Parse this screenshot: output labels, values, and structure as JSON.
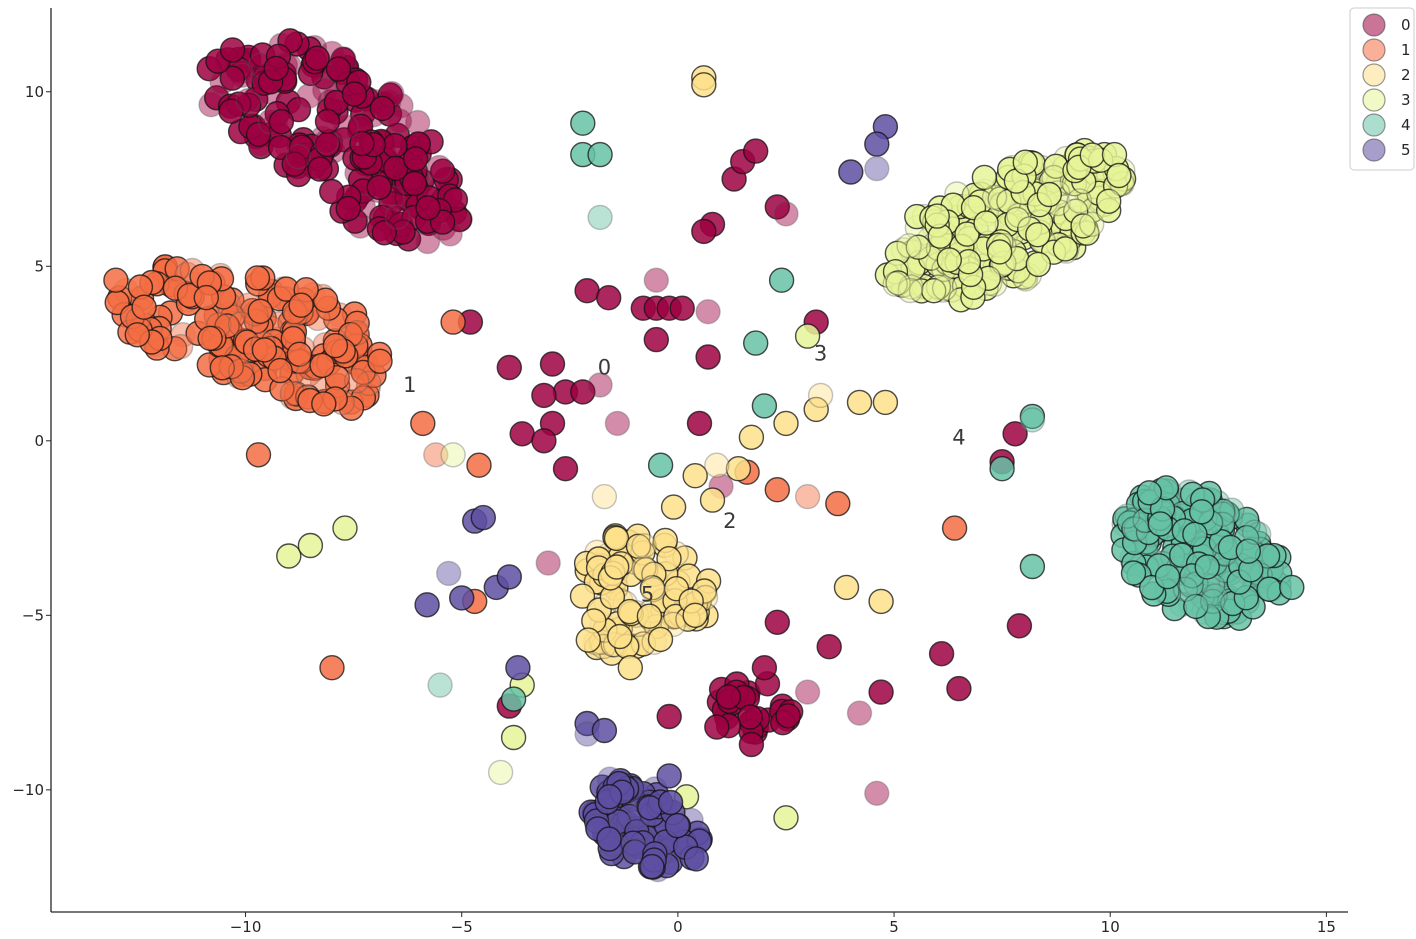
{
  "chart_data": {
    "type": "scatter",
    "xlim": [
      -14.5,
      15.5
    ],
    "ylim": [
      -13.5,
      12.4
    ],
    "x_ticks": [
      -10,
      -5,
      0,
      5,
      10,
      15
    ],
    "y_ticks": [
      -10,
      -5,
      0,
      5,
      10
    ],
    "x_tick_labels": [
      "−10",
      "−5",
      "0",
      "5",
      "10",
      "15"
    ],
    "y_tick_labels": [
      "−10",
      "−5",
      "0",
      "5",
      "10"
    ],
    "grid": false,
    "legend_position": "upper-right",
    "marker": "circle",
    "series": [
      {
        "name": "0",
        "color": "#9e0142",
        "clusters": [
          {
            "polygon": [
              [
                -11,
                10.6
              ],
              [
                -10.2,
                11.5
              ],
              [
                -9,
                11.6
              ],
              [
                -7.4,
                10.8
              ],
              [
                -6.2,
                9.5
              ],
              [
                -5.4,
                8
              ],
              [
                -5,
                6.8
              ],
              [
                -4.8,
                6
              ],
              [
                -5.8,
                5.6
              ],
              [
                -7.2,
                6
              ],
              [
                -8.4,
                7
              ],
              [
                -9.6,
                8.2
              ],
              [
                -10.8,
                9.6
              ]
            ],
            "count": 220
          }
        ],
        "points": [
          [
            -10.3,
            11.2
          ],
          [
            -2.1,
            4.3
          ],
          [
            -1.6,
            4.1
          ],
          [
            -0.5,
            4.6
          ],
          [
            -0.8,
            3.8
          ],
          [
            -0.5,
            3.8
          ],
          [
            -0.2,
            3.8
          ],
          [
            0.1,
            3.8
          ],
          [
            0.7,
            3.7
          ],
          [
            -3.9,
            2.1
          ],
          [
            -2.9,
            2.2
          ],
          [
            -2.6,
            1.4
          ],
          [
            -2.2,
            1.4
          ],
          [
            -1.8,
            1.6
          ],
          [
            -3.1,
            1.3
          ],
          [
            -2.9,
            0.5
          ],
          [
            -3.6,
            0.2
          ],
          [
            -3.1,
            0.0
          ],
          [
            -1.4,
            0.5
          ],
          [
            -0.5,
            2.9
          ],
          [
            0.7,
            2.4
          ],
          [
            0.5,
            0.5
          ],
          [
            -2.6,
            -0.8
          ],
          [
            -3.0,
            -3.5
          ],
          [
            1.3,
            7.5
          ],
          [
            1.5,
            8.0
          ],
          [
            1.8,
            8.3
          ],
          [
            2.3,
            6.7
          ],
          [
            2.5,
            6.5
          ],
          [
            0.8,
            6.2
          ],
          [
            0.6,
            6.0
          ],
          [
            3.2,
            3.4
          ],
          [
            -4.8,
            3.4
          ],
          [
            1.0,
            -1.3
          ],
          [
            7.5,
            -0.6
          ],
          [
            7.8,
            0.2
          ],
          [
            2.3,
            -5.2
          ],
          [
            3.5,
            -5.9
          ],
          [
            4.2,
            -7.8
          ],
          [
            4.7,
            -7.2
          ],
          [
            6.1,
            -6.1
          ],
          [
            6.5,
            -7.1
          ],
          [
            7.9,
            -5.3
          ],
          [
            3.0,
            -7.2
          ],
          [
            1.7,
            -8.7
          ],
          [
            -0.2,
            -7.9
          ],
          [
            0.9,
            -8.2
          ],
          [
            2.0,
            -6.5
          ],
          [
            4.6,
            -10.1
          ],
          [
            -3.9,
            -7.6
          ]
        ],
        "clusters_small": [
          {
            "polygon": [
              [
                1.0,
                -7.0
              ],
              [
                1.8,
                -6.8
              ],
              [
                2.7,
                -7.3
              ],
              [
                2.6,
                -8.2
              ],
              [
                1.6,
                -8.4
              ],
              [
                0.8,
                -8.2
              ]
            ],
            "count": 28
          }
        ]
      },
      {
        "name": "1",
        "color": "#f46d43",
        "clusters": [
          {
            "polygon": [
              [
                -13.2,
                3.8
              ],
              [
                -12.3,
                5.1
              ],
              [
                -10.5,
                5.0
              ],
              [
                -8.2,
                4.3
              ],
              [
                -7.0,
                3.2
              ],
              [
                -6.8,
                1.8
              ],
              [
                -7.4,
                0.9
              ],
              [
                -8.8,
                1.1
              ],
              [
                -10.8,
                2.0
              ],
              [
                -12.5,
                2.8
              ]
            ],
            "count": 200
          }
        ],
        "points": [
          [
            -13.0,
            4.6
          ],
          [
            -9.7,
            -0.4
          ],
          [
            -5.9,
            0.5
          ],
          [
            -5.6,
            -0.4
          ],
          [
            -4.6,
            -0.7
          ],
          [
            -5.2,
            3.4
          ],
          [
            -8.0,
            -6.5
          ],
          [
            2.3,
            -1.4
          ],
          [
            3.0,
            -1.6
          ],
          [
            3.7,
            -1.8
          ],
          [
            6.4,
            -2.5
          ],
          [
            1.6,
            -0.9
          ],
          [
            -4.7,
            -4.6
          ]
        ],
        "clusters_small": []
      },
      {
        "name": "2",
        "color": "#fee08b",
        "clusters": [
          {
            "polygon": [
              [
                -2.2,
                -3.6
              ],
              [
                -1.4,
                -2.6
              ],
              [
                -0.2,
                -2.8
              ],
              [
                0.7,
                -3.6
              ],
              [
                0.8,
                -4.9
              ],
              [
                -0.1,
                -5.8
              ],
              [
                -1.1,
                -6.1
              ],
              [
                -2.2,
                -6.3
              ],
              [
                -2.3,
                -5.0
              ]
            ],
            "count": 110
          }
        ],
        "points": [
          [
            0.6,
            10.4
          ],
          [
            0.6,
            10.2
          ],
          [
            3.2,
            0.9
          ],
          [
            3.3,
            1.3
          ],
          [
            4.2,
            1.1
          ],
          [
            4.8,
            1.1
          ],
          [
            2.5,
            0.5
          ],
          [
            1.7,
            0.1
          ],
          [
            -1.7,
            -1.6
          ],
          [
            -0.1,
            -1.9
          ],
          [
            0.4,
            -1.0
          ],
          [
            0.8,
            -1.7
          ],
          [
            1.4,
            -0.8
          ],
          [
            0.9,
            -0.7
          ],
          [
            3.9,
            -4.2
          ],
          [
            4.7,
            -4.6
          ],
          [
            -1.1,
            -6.5
          ],
          [
            0.4,
            -5.0
          ]
        ],
        "clusters_small": []
      },
      {
        "name": "3",
        "color": "#e6f598",
        "clusters": [
          {
            "polygon": [
              [
                4.6,
                4.9
              ],
              [
                5.4,
                6.4
              ],
              [
                7.1,
                7.6
              ],
              [
                9.1,
                8.5
              ],
              [
                10.4,
                8.0
              ],
              [
                10.3,
                6.8
              ],
              [
                9.0,
                5.3
              ],
              [
                7.4,
                4.1
              ],
              [
                5.5,
                3.9
              ]
            ],
            "count": 230
          }
        ],
        "points": [
          [
            10.1,
            8.2
          ],
          [
            10.2,
            7.6
          ],
          [
            3.0,
            3.0
          ],
          [
            -5.2,
            -0.4
          ],
          [
            -9.0,
            -3.3
          ],
          [
            -8.5,
            -3.0
          ],
          [
            -7.7,
            -2.5
          ],
          [
            -3.8,
            -8.5
          ],
          [
            -4.1,
            -9.5
          ],
          [
            -3.6,
            -7.0
          ],
          [
            0.2,
            -10.2
          ],
          [
            2.5,
            -10.8
          ]
        ],
        "clusters_small": []
      },
      {
        "name": "4",
        "color": "#66c2a5",
        "clusters": [
          {
            "polygon": [
              [
                10.2,
                -2.2
              ],
              [
                11.0,
                -1.3
              ],
              [
                12.5,
                -1.5
              ],
              [
                14.0,
                -3.0
              ],
              [
                14.0,
                -4.3
              ],
              [
                13.0,
                -5.1
              ],
              [
                11.6,
                -5.0
              ],
              [
                10.4,
                -4.0
              ]
            ],
            "count": 190
          }
        ],
        "points": [
          [
            -2.2,
            9.1
          ],
          [
            -2.2,
            8.2
          ],
          [
            -1.8,
            8.2
          ],
          [
            -1.8,
            6.4
          ],
          [
            2.4,
            4.6
          ],
          [
            1.8,
            2.8
          ],
          [
            2.0,
            1.0
          ],
          [
            8.2,
            0.7
          ],
          [
            8.2,
            0.6
          ],
          [
            7.5,
            -0.8
          ],
          [
            -0.4,
            -0.7
          ],
          [
            8.2,
            -3.6
          ],
          [
            14.2,
            -4.2
          ],
          [
            -5.5,
            -7.0
          ],
          [
            -3.8,
            -7.4
          ]
        ],
        "clusters_small": []
      },
      {
        "name": "5",
        "color": "#5e4fa2",
        "clusters": [
          {
            "polygon": [
              [
                -2.1,
                -10.1
              ],
              [
                -1.5,
                -9.6
              ],
              [
                -0.4,
                -10.0
              ],
              [
                0.6,
                -11.0
              ],
              [
                0.5,
                -12.0
              ],
              [
                -0.5,
                -12.3
              ],
              [
                -1.6,
                -11.8
              ],
              [
                -2.0,
                -11.0
              ]
            ],
            "count": 100
          }
        ],
        "points": [
          [
            4.8,
            9.0
          ],
          [
            4.6,
            8.5
          ],
          [
            4.0,
            7.7
          ],
          [
            4.6,
            7.8
          ],
          [
            -4.7,
            -2.3
          ],
          [
            -4.5,
            -2.2
          ],
          [
            -5.8,
            -4.7
          ],
          [
            -5.0,
            -4.5
          ],
          [
            -5.3,
            -3.8
          ],
          [
            -4.2,
            -4.2
          ],
          [
            -3.9,
            -3.9
          ],
          [
            -3.7,
            -6.5
          ],
          [
            -2.1,
            -8.1
          ],
          [
            -2.1,
            -8.4
          ],
          [
            -1.7,
            -8.3
          ],
          [
            -0.2,
            -9.6
          ],
          [
            -0.6,
            -12.2
          ]
        ],
        "clusters_small": []
      }
    ],
    "cluster_labels": [
      {
        "text": "0",
        "x": -1.7,
        "y": 1.9
      },
      {
        "text": "1",
        "x": -6.2,
        "y": 1.4
      },
      {
        "text": "2",
        "x": 1.2,
        "y": -2.5
      },
      {
        "text": "3",
        "x": 3.3,
        "y": 2.3
      },
      {
        "text": "4",
        "x": 6.5,
        "y": -0.1
      },
      {
        "text": "5",
        "x": -0.7,
        "y": -4.6
      }
    ]
  }
}
